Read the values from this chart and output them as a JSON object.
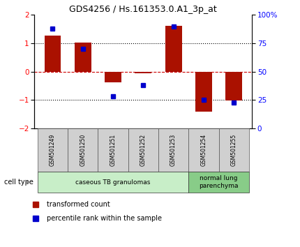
{
  "title": "GDS4256 / Hs.161353.0.A1_3p_at",
  "samples": [
    "GSM501249",
    "GSM501250",
    "GSM501251",
    "GSM501252",
    "GSM501253",
    "GSM501254",
    "GSM501255"
  ],
  "transformed_count": [
    1.28,
    1.02,
    -0.38,
    -0.05,
    1.62,
    -1.42,
    -1.02
  ],
  "percentile_rank": [
    88,
    70,
    28,
    38,
    90,
    25,
    23
  ],
  "bar_color": "#aa1100",
  "dot_color": "#0000cc",
  "ylim": [
    -2,
    2
  ],
  "ylim_right": [
    0,
    100
  ],
  "yticks_left": [
    -2,
    -1,
    0,
    1,
    2
  ],
  "yticks_right": [
    0,
    25,
    50,
    75,
    100
  ],
  "ytick_labels_right": [
    "0",
    "25",
    "50",
    "75",
    "100%"
  ],
  "groups": [
    {
      "label": "caseous TB granulomas",
      "start": 0,
      "end": 5,
      "color": "#c8eec8"
    },
    {
      "label": "normal lung\nparenchyma",
      "start": 5,
      "end": 7,
      "color": "#88cc88"
    }
  ],
  "legend_bar_label": "transformed count",
  "legend_dot_label": "percentile rank within the sample",
  "cell_type_label": "cell type",
  "bar_width": 0.55,
  "dotted_line_color": "#000000",
  "zero_line_color": "#cc0000",
  "bg_color": "#ffffff",
  "sample_box_color": "#d0d0d0",
  "sample_text_color": "#000000"
}
